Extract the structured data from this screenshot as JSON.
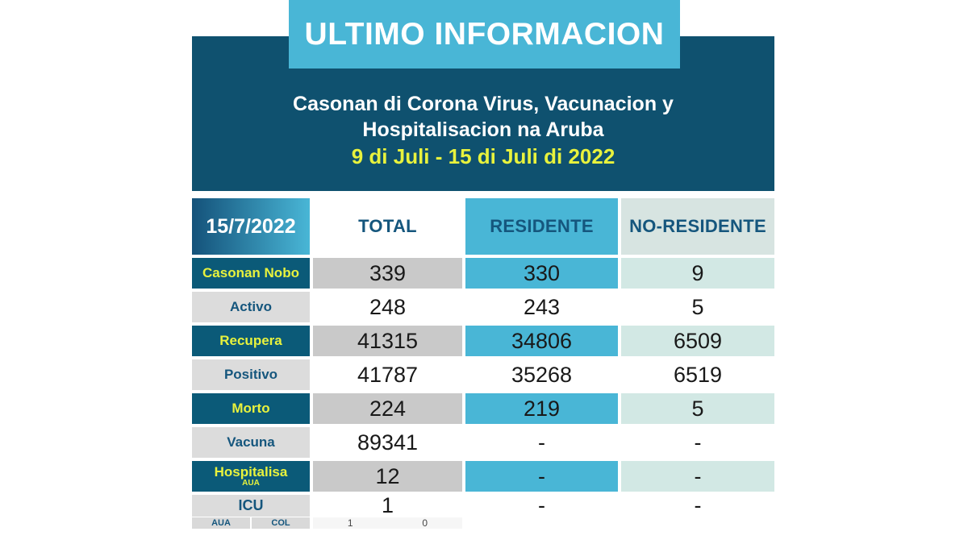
{
  "banner": {
    "title": "ULTIMO INFORMACION"
  },
  "hero": {
    "title_line1": "Casonan di Corona Virus, Vacunacion y",
    "title_line2": "Hospitalisacion na Aruba",
    "date_range": "9 di Juli - 15 di Juli di 2022"
  },
  "table": {
    "headers": {
      "date": "15/7/2022",
      "total": "TOTAL",
      "residente": "RESIDENTE",
      "no_residente": "NO-RESIDENTE"
    },
    "rows": [
      {
        "label": "Casonan Nobo",
        "total": "339",
        "residente": "330",
        "no_residente": "9"
      },
      {
        "label": "Activo",
        "total": "248",
        "residente": "243",
        "no_residente": "5"
      },
      {
        "label": "Recupera",
        "total": "41315",
        "residente": "34806",
        "no_residente": "6509"
      },
      {
        "label": "Positivo",
        "total": "41787",
        "residente": "35268",
        "no_residente": "6519"
      },
      {
        "label": "Morto",
        "total": "224",
        "residente": "219",
        "no_residente": "5"
      },
      {
        "label": "Vacuna",
        "total": "89341",
        "residente": "-",
        "no_residente": "-"
      },
      {
        "label": "Hospitalisa",
        "sublabel": "AUA",
        "total": "12",
        "residente": "-",
        "no_residente": "-"
      },
      {
        "label": "ICU",
        "total": "1",
        "residente": "-",
        "no_residente": "-"
      }
    ],
    "icu_breakdown": {
      "labels": [
        "AUA",
        "COL"
      ],
      "values": [
        "1",
        "0"
      ]
    }
  },
  "colors": {
    "cyan": "#49b6d6",
    "hero_dark_blue": "#0f516f",
    "label_dark_blue": "#0b5a78",
    "yellow": "#e8f23d",
    "pale_cyan_cell": "#d2e8e4",
    "pale_header_cell": "#d7e4e1",
    "gray_value_cell": "#c9c9c9",
    "light_gray_label": "#dcdcdc",
    "header_text_blue": "#15567d"
  },
  "chart_data": {
    "type": "table",
    "banner": "ULTIMO INFORMACION",
    "title": "Casonan di Corona Virus, Vacunacion y Hospitalisacion na Aruba",
    "subtitle": "9 di Juli - 15 di Juli di 2022",
    "columns": [
      "15/7/2022",
      "TOTAL",
      "RESIDENTE",
      "NO-RESIDENTE"
    ],
    "rows": [
      [
        "Casonan Nobo",
        339,
        330,
        9
      ],
      [
        "Activo",
        248,
        243,
        5
      ],
      [
        "Recupera",
        41315,
        34806,
        6509
      ],
      [
        "Positivo",
        41787,
        35268,
        6519
      ],
      [
        "Morto",
        224,
        219,
        5
      ],
      [
        "Vacuna",
        89341,
        null,
        null
      ],
      [
        "Hospitalisa AUA",
        12,
        null,
        null
      ],
      [
        "ICU",
        1,
        null,
        null
      ],
      [
        "ICU breakdown AUA/COL",
        "1 / 0",
        null,
        null
      ]
    ]
  }
}
